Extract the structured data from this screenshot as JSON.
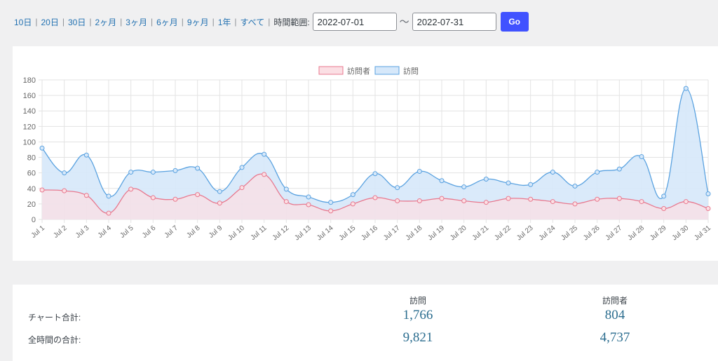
{
  "ranges": [
    "10日",
    "20日",
    "30日",
    "2ヶ月",
    "3ヶ月",
    "6ヶ月",
    "9ヶ月",
    "1年",
    "すべて"
  ],
  "range_label": "時間範囲:",
  "date_from": "2022-07-01",
  "date_to": "2022-07-31",
  "tilde": "〜",
  "go_label": "Go",
  "chart_data": {
    "type": "area",
    "categories": [
      "Jul 1",
      "Jul 2",
      "Jul 3",
      "Jul 4",
      "Jul 5",
      "Jul 6",
      "Jul 7",
      "Jul 8",
      "Jul 9",
      "Jul 10",
      "Jul 11",
      "Jul 12",
      "Jul 13",
      "Jul 14",
      "Jul 15",
      "Jul 16",
      "Jul 17",
      "Jul 18",
      "Jul 19",
      "Jul 20",
      "Jul 21",
      "Jul 22",
      "Jul 23",
      "Jul 24",
      "Jul 25",
      "Jul 26",
      "Jul 27",
      "Jul 28",
      "Jul 29",
      "Jul 30",
      "Jul 31"
    ],
    "series": [
      {
        "name": "訪問者",
        "color": "#e8798f",
        "fill": "#fbdfe4",
        "values": [
          38,
          37,
          31,
          8,
          39,
          28,
          26,
          32,
          21,
          41,
          58,
          23,
          19,
          11,
          20,
          28,
          24,
          24,
          27,
          24,
          22,
          27,
          26,
          23,
          20,
          26,
          27,
          23,
          14,
          23,
          14
        ]
      },
      {
        "name": "訪問",
        "color": "#5aa2e0",
        "fill": "#d6e8fa",
        "values": [
          92,
          60,
          83,
          30,
          61,
          61,
          63,
          66,
          36,
          67,
          84,
          39,
          29,
          22,
          32,
          59,
          41,
          62,
          50,
          42,
          52,
          47,
          45,
          61,
          43,
          61,
          65,
          81,
          30,
          169,
          33
        ]
      }
    ],
    "ylim": [
      0,
      180
    ],
    "yticks": [
      0,
      20,
      40,
      60,
      80,
      100,
      120,
      140,
      160,
      180
    ],
    "legend": "top-center",
    "grid": true
  },
  "stats": {
    "col_visits": "訪問",
    "col_visitors": "訪問者",
    "rows": [
      {
        "label": "チャート合計:",
        "visits": "1,766",
        "visitors": "804"
      },
      {
        "label": "全時間の合計:",
        "visits": "9,821",
        "visitors": "4,737"
      }
    ]
  }
}
